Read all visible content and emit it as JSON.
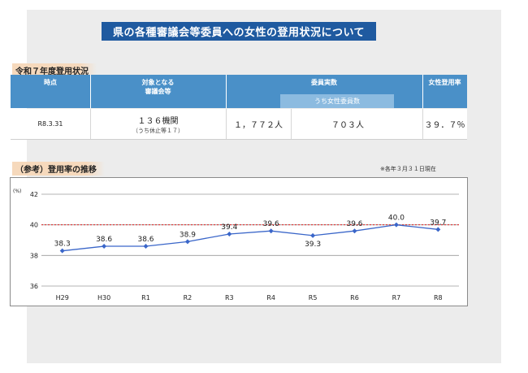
{
  "title": "県の各種審議会等委員への女性の登用状況について",
  "table_section": {
    "label": "令和７年度登用状況",
    "headers": {
      "point": "時点",
      "target": "対象となる\n審議会等",
      "members": "委員実数",
      "members_female": "うち女性委員数",
      "rate": "女性登用率"
    },
    "row": {
      "point": "R8.3.31",
      "target": "１３６機関",
      "target_note": "（うち休止等１７）",
      "members": "１，７７２人",
      "members_female": "７０３人",
      "rate": "３９．７％"
    }
  },
  "chart_section": {
    "label": "（参考）登用率の推移",
    "note": "※各年３月３１日現在"
  },
  "colors": {
    "title_bg": "#1f5aa0",
    "header_bg": "#4a90c8",
    "subheader_bg": "#8cbbe0",
    "line": "#3a66c9",
    "ref_line": "#e02020",
    "label_bg": "#f6d9bc"
  },
  "chart_data": {
    "type": "line",
    "categories": [
      "H29",
      "H30",
      "R1",
      "R2",
      "R3",
      "R4",
      "R5",
      "R6",
      "R7",
      "R8"
    ],
    "series": [
      {
        "values": [
          38.3,
          38.6,
          38.6,
          38.9,
          39.4,
          39.6,
          39.3,
          39.6,
          40.0,
          39.7
        ]
      }
    ],
    "ylabel": "(%)",
    "ylim": [
      36,
      42
    ],
    "yticks": [
      36,
      38,
      40,
      42
    ],
    "reference_line": 40,
    "grid": true,
    "legend": "none"
  }
}
